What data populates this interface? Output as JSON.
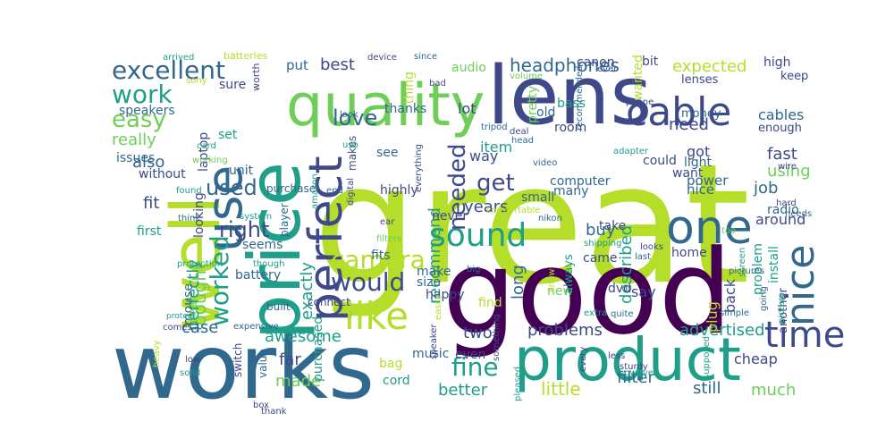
{
  "palette": {
    "lime": "#b5de2b",
    "green": "#6ece58",
    "teal": "#1f9e89",
    "blue": "#31688e",
    "indigo": "#3e4989",
    "purple": "#440154",
    "yellow": "#fde725"
  },
  "words": [
    {
      "text": "great",
      "color": "#b5de2b"
    },
    {
      "text": "good",
      "color": "#440154"
    },
    {
      "text": "works",
      "color": "#31688e"
    },
    {
      "text": "lens",
      "color": "#3e4989"
    },
    {
      "text": "price",
      "color": "#1f9e89"
    },
    {
      "text": "well",
      "color": "#b5de2b"
    },
    {
      "text": "quality",
      "color": "#6ece58"
    },
    {
      "text": "product",
      "color": "#1f9e89"
    },
    {
      "text": "use",
      "color": "#31688e"
    },
    {
      "text": "one",
      "color": "#31688e"
    },
    {
      "text": "perfect",
      "color": "#3e4989"
    },
    {
      "text": "cable",
      "color": "#3e4989"
    },
    {
      "text": "like",
      "color": "#b5de2b"
    },
    {
      "text": "nice",
      "color": "#31688e"
    },
    {
      "text": "time",
      "color": "#3e4989"
    },
    {
      "text": "sound",
      "color": "#1f9e89"
    },
    {
      "text": "excellent",
      "color": "#31688e"
    },
    {
      "text": "work",
      "color": "#1f9e89"
    },
    {
      "text": "headphones",
      "color": "#31688e"
    },
    {
      "text": "camera",
      "color": "#b5de2b"
    },
    {
      "text": "worked",
      "color": "#1f9e89"
    },
    {
      "text": "would",
      "color": "#3e4989"
    },
    {
      "text": "fine",
      "color": "#1f9e89"
    },
    {
      "text": "right",
      "color": "#3e4989"
    },
    {
      "text": "easy",
      "color": "#6ece58"
    },
    {
      "text": "love",
      "color": "#31688e"
    },
    {
      "text": "needed",
      "color": "#3e4989"
    },
    {
      "text": "get",
      "color": "#3e4989"
    },
    {
      "text": "used",
      "color": "#31688e"
    },
    {
      "text": "expected",
      "color": "#b5de2b"
    },
    {
      "text": "bought",
      "color": "#6ece58"
    },
    {
      "text": "little",
      "color": "#b5de2b"
    },
    {
      "text": "much",
      "color": "#6ece58"
    },
    {
      "text": "better",
      "color": "#1f9e89"
    },
    {
      "text": "filter",
      "color": "#31688e"
    },
    {
      "text": "still",
      "color": "#31688e"
    },
    {
      "text": "problems",
      "color": "#3e4989"
    },
    {
      "text": "advertised",
      "color": "#1f9e89"
    },
    {
      "text": "recommend",
      "color": "#1f9e89"
    },
    {
      "text": "described",
      "color": "#1f9e89"
    },
    {
      "text": "exactly",
      "color": "#1f9e89"
    },
    {
      "text": "perfectly",
      "color": "#1f9e89"
    },
    {
      "text": "really",
      "color": "#6ece58"
    },
    {
      "text": "also",
      "color": "#31688e"
    },
    {
      "text": "fit",
      "color": "#3e4989"
    },
    {
      "text": "best",
      "color": "#3e4989"
    },
    {
      "text": "put",
      "color": "#31688e"
    },
    {
      "text": "fast",
      "color": "#3e4989"
    },
    {
      "text": "job",
      "color": "#31688e"
    },
    {
      "text": "using",
      "color": "#6ece58"
    },
    {
      "text": "need",
      "color": "#3e4989"
    },
    {
      "text": "cables",
      "color": "#31688e"
    },
    {
      "text": "years",
      "color": "#3e4989"
    },
    {
      "text": "buy",
      "color": "#31688e"
    },
    {
      "text": "long",
      "color": "#31688e"
    },
    {
      "text": "made",
      "color": "#6ece58"
    },
    {
      "text": "far",
      "color": "#3e4989"
    },
    {
      "text": "cheap",
      "color": "#3e4989"
    },
    {
      "text": "case",
      "color": "#31688e"
    },
    {
      "text": "awesome",
      "color": "#1f9e89"
    },
    {
      "text": "two",
      "color": "#3e4989"
    },
    {
      "text": "item",
      "color": "#1f9e89"
    },
    {
      "text": "lot",
      "color": "#3e4989"
    },
    {
      "text": "way",
      "color": "#3e4989"
    },
    {
      "text": "audio",
      "color": "#6ece58"
    },
    {
      "text": "say",
      "color": "#3e4989"
    },
    {
      "text": "plug",
      "color": "#b5de2b"
    },
    {
      "text": "back",
      "color": "#3e4989"
    },
    {
      "text": "nice",
      "color": "#31688e"
    },
    {
      "text": "got",
      "color": "#3e4989"
    },
    {
      "text": "could",
      "color": "#3e4989"
    },
    {
      "text": "want",
      "color": "#3e4989"
    },
    {
      "text": "light",
      "color": "#31688e"
    },
    {
      "text": "power",
      "color": "#31688e"
    },
    {
      "text": "radio",
      "color": "#31688e"
    },
    {
      "text": "around",
      "color": "#3e4989"
    },
    {
      "text": "battery",
      "color": "#31688e"
    },
    {
      "text": "unit",
      "color": "#31688e"
    },
    {
      "text": "first",
      "color": "#1f9e89"
    },
    {
      "text": "seems",
      "color": "#31688e"
    },
    {
      "text": "mouse",
      "color": "#31688e"
    },
    {
      "text": "set",
      "color": "#1f9e89"
    },
    {
      "text": "speakers",
      "color": "#31688e"
    },
    {
      "text": "issues",
      "color": "#31688e"
    },
    {
      "text": "without",
      "color": "#3e4989"
    },
    {
      "text": "laptop",
      "color": "#3e4989"
    },
    {
      "text": "looking",
      "color": "#3e4989"
    },
    {
      "text": "sure",
      "color": "#3e4989"
    },
    {
      "text": "highly",
      "color": "#3e4989"
    },
    {
      "text": "fits",
      "color": "#31688e"
    },
    {
      "text": "make",
      "color": "#31688e"
    },
    {
      "text": "size",
      "color": "#31688e"
    },
    {
      "text": "happy",
      "color": "#3e4989"
    },
    {
      "text": "new",
      "color": "#6ece58"
    },
    {
      "text": "find",
      "color": "#b5de2b"
    },
    {
      "text": "computer",
      "color": "#31688e"
    },
    {
      "text": "many",
      "color": "#31688e"
    },
    {
      "text": "small",
      "color": "#31688e"
    },
    {
      "text": "pretty",
      "color": "#6ece58"
    },
    {
      "text": "room",
      "color": "#3e4989"
    },
    {
      "text": "old",
      "color": "#31688e"
    },
    {
      "text": "bass",
      "color": "#1f9e89"
    },
    {
      "text": "thanks",
      "color": "#31688e"
    },
    {
      "text": "lenses",
      "color": "#3e4989"
    },
    {
      "text": "money",
      "color": "#31688e"
    },
    {
      "text": "enough",
      "color": "#3e4989"
    },
    {
      "text": "keep",
      "color": "#3e4989"
    },
    {
      "text": "high",
      "color": "#3e4989"
    },
    {
      "text": "bit",
      "color": "#3e4989"
    },
    {
      "text": "wanted",
      "color": "#b5de2b"
    },
    {
      "text": "canon",
      "color": "#3e4989"
    },
    {
      "text": "thing",
      "color": "#b5de2b"
    },
    {
      "text": "see",
      "color": "#31688e"
    },
    {
      "text": "never",
      "color": "#3e4989"
    },
    {
      "text": "take",
      "color": "#3e4989"
    },
    {
      "text": "came",
      "color": "#3e4989"
    },
    {
      "text": "always",
      "color": "#1f9e89"
    },
    {
      "text": "dvd",
      "color": "#3e4989"
    },
    {
      "text": "home",
      "color": "#3e4989"
    },
    {
      "text": "problem",
      "color": "#1f9e89"
    },
    {
      "text": "install",
      "color": "#1f9e89"
    },
    {
      "text": "another",
      "color": "#3e4989"
    },
    {
      "text": "music",
      "color": "#31688e"
    },
    {
      "text": "even",
      "color": "#3e4989"
    },
    {
      "text": "bag",
      "color": "#b5de2b"
    },
    {
      "text": "cord",
      "color": "#1f9e89"
    },
    {
      "text": "purchased",
      "color": "#1f9e89"
    },
    {
      "text": "value",
      "color": "#31688e"
    },
    {
      "text": "switch",
      "color": "#3e4989"
    },
    {
      "text": "clear",
      "color": "#6ece58"
    },
    {
      "text": "makes",
      "color": "#3e4989"
    },
    {
      "text": "player",
      "color": "#31688e"
    },
    {
      "text": "purchase",
      "color": "#31688e"
    },
    {
      "text": "built",
      "color": "#31688e"
    },
    {
      "text": "connect",
      "color": "#3e4989"
    },
    {
      "text": "arrived",
      "color": "#1f9e89"
    },
    {
      "text": "batteries",
      "color": "#b5de2b"
    },
    {
      "text": "device",
      "color": "#3e4989"
    },
    {
      "text": "since",
      "color": "#31688e"
    },
    {
      "text": "sony",
      "color": "#b5de2b"
    },
    {
      "text": "worth",
      "color": "#3e4989"
    },
    {
      "text": "volume",
      "color": "#6ece58"
    },
    {
      "text": "ever",
      "color": "#3e4989"
    },
    {
      "text": "bad",
      "color": "#3e4989"
    },
    {
      "text": "look",
      "color": "#31688e"
    },
    {
      "text": "tripod",
      "color": "#31688e"
    },
    {
      "text": "deal",
      "color": "#3e4989"
    },
    {
      "text": "head",
      "color": "#31688e"
    },
    {
      "text": "phone",
      "color": "#3e4989"
    },
    {
      "text": "recommended",
      "color": "#31688e"
    },
    {
      "text": "adapter",
      "color": "#1f9e89"
    },
    {
      "text": "wire",
      "color": "#3e4989"
    },
    {
      "text": "card",
      "color": "#1f9e89"
    },
    {
      "text": "working",
      "color": "#6ece58"
    },
    {
      "text": "usb",
      "color": "#1f9e89"
    },
    {
      "text": "amazon",
      "color": "#1f9e89"
    },
    {
      "text": "digital",
      "color": "#3e4989"
    },
    {
      "text": "video",
      "color": "#31688e"
    },
    {
      "text": "everything",
      "color": "#3e4989"
    },
    {
      "text": "end",
      "color": "#31688e"
    },
    {
      "text": "found",
      "color": "#1f9e89"
    },
    {
      "text": "think",
      "color": "#31688e"
    },
    {
      "text": "system",
      "color": "#1f9e89"
    },
    {
      "text": "protection",
      "color": "#1f9e89"
    },
    {
      "text": "though",
      "color": "#1f9e89"
    },
    {
      "text": "ear",
      "color": "#3e4989"
    },
    {
      "text": "comfortable",
      "color": "#b5de2b"
    },
    {
      "text": "nikon",
      "color": "#31688e"
    },
    {
      "text": "shipping",
      "color": "#1f9e89"
    },
    {
      "text": "filters",
      "color": "#6ece58"
    },
    {
      "text": "big",
      "color": "#31688e"
    },
    {
      "text": "hard",
      "color": "#3e4989"
    },
    {
      "text": "needs",
      "color": "#31688e"
    },
    {
      "text": "too",
      "color": "#6ece58"
    },
    {
      "text": "looks",
      "color": "#3e4989"
    },
    {
      "text": "last",
      "color": "#31688e"
    },
    {
      "text": "screen",
      "color": "#1f9e89"
    },
    {
      "text": "pictures",
      "color": "#31688e"
    },
    {
      "text": "know",
      "color": "#b5de2b"
    },
    {
      "text": "quite",
      "color": "#31688e"
    },
    {
      "text": "extra",
      "color": "#1f9e89"
    },
    {
      "text": "simple",
      "color": "#31688e"
    },
    {
      "text": "going",
      "color": "#31688e"
    },
    {
      "text": "picture",
      "color": "#1f9e89"
    },
    {
      "text": "protect",
      "color": "#1f9e89"
    },
    {
      "text": "comes",
      "color": "#3e4989"
    },
    {
      "text": "expensive",
      "color": "#31688e"
    },
    {
      "text": "easily",
      "color": "#b5de2b"
    },
    {
      "text": "speaker",
      "color": "#3e4989"
    },
    {
      "text": "something",
      "color": "#3e4989"
    },
    {
      "text": "pleased",
      "color": "#1f9e89"
    },
    {
      "text": "every",
      "color": "#3e4989"
    },
    {
      "text": "less",
      "color": "#3e4989"
    },
    {
      "text": "sturdy",
      "color": "#3e4989"
    },
    {
      "text": "however",
      "color": "#1f9e89"
    },
    {
      "text": "supposed",
      "color": "#1f9e89"
    },
    {
      "text": "heavy",
      "color": "#b5de2b"
    },
    {
      "text": "solid",
      "color": "#1f9e89"
    },
    {
      "text": "low",
      "color": "#3e4989"
    },
    {
      "text": "box",
      "color": "#3e4989"
    },
    {
      "text": "thank",
      "color": "#3e4989"
    }
  ]
}
